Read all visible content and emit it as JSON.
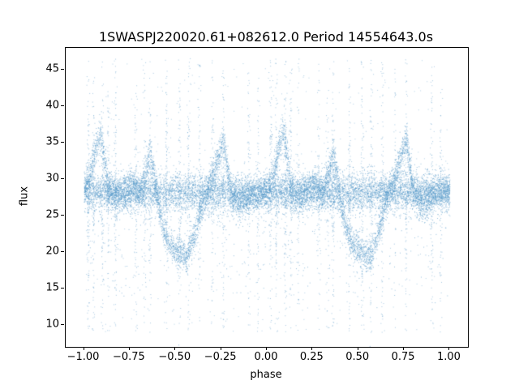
{
  "figure": {
    "title": "1SWASPJ220020.61+082612.0 Period 14554643.0s"
  },
  "chart_data": {
    "type": "scatter",
    "title": "1SWASPJ220020.61+082612.0 Period 14554643.0s",
    "xlabel": "phase",
    "ylabel": "flux",
    "xlim": [
      -1.1,
      1.1
    ],
    "ylim": [
      7.0,
      48.0
    ],
    "xticks": [
      -1.0,
      -0.75,
      -0.5,
      -0.25,
      0.0,
      0.25,
      0.5,
      0.75,
      1.0
    ],
    "xtick_labels": [
      "−1.00",
      "−0.75",
      "−0.50",
      "−0.25",
      "0.00",
      "0.25",
      "0.50",
      "0.75",
      "1.00"
    ],
    "yticks": [
      10,
      15,
      20,
      25,
      30,
      35,
      40,
      45
    ],
    "ytick_labels": [
      "10",
      "15",
      "20",
      "25",
      "30",
      "35",
      "40",
      "45"
    ],
    "grid": false,
    "legend": null,
    "marker_color": "#4f94c6",
    "marker_size_px": 1,
    "phase_range": [
      -1.0,
      1.0
    ],
    "period_seconds": 14554643.0,
    "description": "Phase-folded light curve; data repeats with period 1.0 in phase. Dense band near flux 28 plus a wandering component with peaks near phase 0.09 (~37), 0.36 (~34), 0.76 (~36) and a broad dip near phase 0.45-0.60 (~19-21). Sparse vertical outlier streaks span flux ~9-46.5.",
    "profile": {
      "phase": [
        0.0,
        0.03,
        0.06,
        0.09,
        0.11,
        0.13,
        0.17,
        0.22,
        0.27,
        0.3,
        0.33,
        0.36,
        0.38,
        0.4,
        0.43,
        0.47,
        0.52,
        0.56,
        0.6,
        0.64,
        0.68,
        0.72,
        0.76,
        0.78,
        0.8,
        0.84,
        0.88,
        0.92,
        0.96,
        1.0
      ],
      "flux_mean": [
        28.5,
        30.0,
        34.0,
        36.5,
        33.0,
        29.0,
        27.5,
        28.5,
        29.5,
        28.0,
        30.0,
        33.5,
        31.0,
        27.0,
        23.5,
        21.0,
        20.0,
        19.5,
        22.0,
        26.0,
        29.0,
        32.0,
        35.5,
        32.0,
        28.5,
        26.5,
        27.0,
        28.0,
        28.3,
        28.5
      ]
    },
    "baseline_band": {
      "mean": 28.2,
      "sigma": 1.3,
      "fraction": 0.55
    },
    "wander_sigma": 1.1,
    "outlier_streak_phases": [
      0.02,
      0.05,
      0.1,
      0.13,
      0.17,
      0.28,
      0.33,
      0.36,
      0.45,
      0.52,
      0.57,
      0.63,
      0.7,
      0.76,
      0.9,
      0.95
    ],
    "outlier_flux_range": [
      9.0,
      46.5
    ],
    "n_points": 16000
  }
}
